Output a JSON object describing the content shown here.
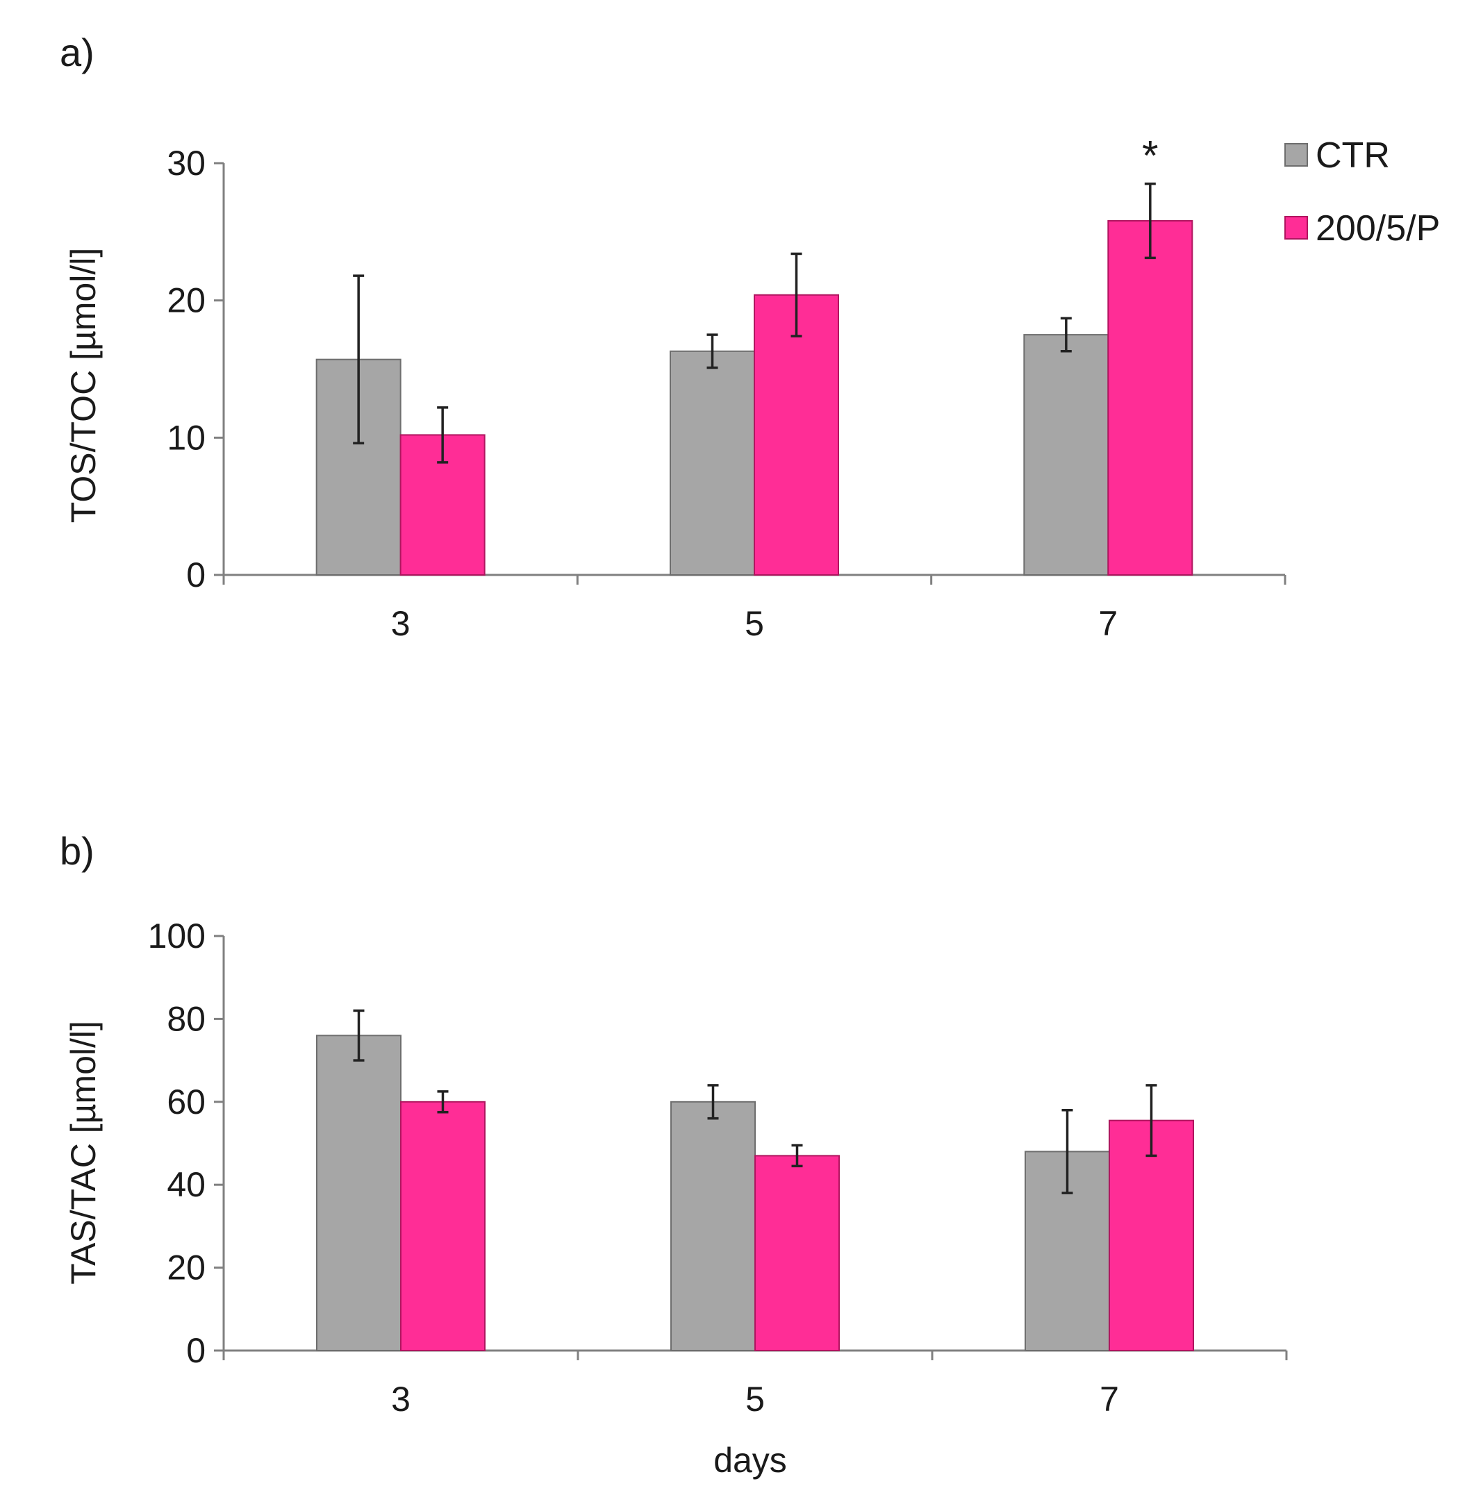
{
  "legend": {
    "entries": [
      {
        "name": "CTR",
        "color": "#a6a6a6"
      },
      {
        "name": "200/5/P",
        "color": "#ff2d96"
      }
    ]
  },
  "chart_data": [
    {
      "type": "bar",
      "panel_label": "a)",
      "categories": [
        "3",
        "5",
        "7"
      ],
      "ylabel": "TOS/TOC [µmol/l]",
      "xlabel": "",
      "ylim": [
        0,
        30
      ],
      "yticks": [
        0,
        10,
        20,
        30
      ],
      "grid": false,
      "legend_position": "top-right",
      "series": [
        {
          "name": "CTR",
          "color": "#a6a6a6",
          "values": [
            15.7,
            16.3,
            17.5
          ],
          "errors": [
            6.1,
            1.2,
            1.2
          ]
        },
        {
          "name": "200/5/P",
          "color": "#ff2d96",
          "values": [
            10.2,
            20.4,
            25.8
          ],
          "errors": [
            2.0,
            3.0,
            2.7
          ]
        }
      ],
      "annotations": [
        {
          "text": "*",
          "category": "7",
          "series": "200/5/P"
        }
      ]
    },
    {
      "type": "bar",
      "panel_label": "b)",
      "categories": [
        "3",
        "5",
        "7"
      ],
      "ylabel": "TAS/TAC [µmol/l]",
      "xlabel": "days",
      "ylim": [
        0,
        100
      ],
      "yticks": [
        0,
        20,
        40,
        60,
        80,
        100
      ],
      "grid": false,
      "series": [
        {
          "name": "CTR",
          "color": "#a6a6a6",
          "values": [
            76,
            60,
            48
          ],
          "errors": [
            6,
            4,
            10
          ]
        },
        {
          "name": "200/5/P",
          "color": "#ff2d96",
          "values": [
            60,
            47,
            55.5
          ],
          "errors": [
            2.5,
            2.5,
            8.5
          ]
        }
      ],
      "annotations": []
    }
  ]
}
